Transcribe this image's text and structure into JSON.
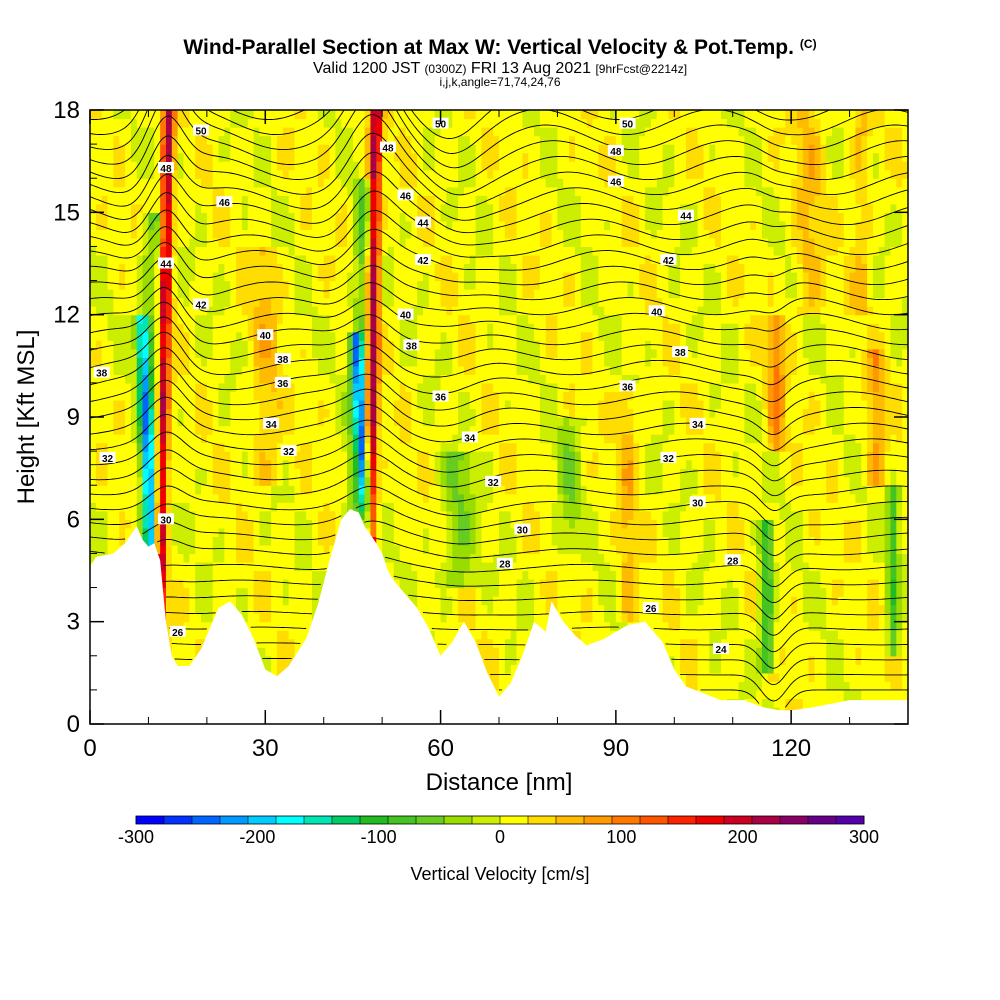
{
  "header": {
    "title": "Wind-Parallel Section at Max W: Vertical Velocity & Pot.Temp.",
    "copyright": "(C)",
    "valid_prefix": "Valid 1200 JST",
    "valid_utc": "(0300Z)",
    "valid_date": "FRI 13 Aug 2021",
    "forecast": "[9hrFcst@2214z]",
    "indices": "i,j,k,angle=71,74,24,76"
  },
  "chart_data": {
    "type": "heatmap",
    "xlabel": "Distance [nm]",
    "ylabel": "Height [Kft MSL]",
    "xlim": [
      0,
      140
    ],
    "ylim": [
      0,
      18
    ],
    "x_ticks": [
      "0",
      "30",
      "60",
      "90",
      "120"
    ],
    "x_tick_values": [
      0,
      30,
      60,
      90,
      120
    ],
    "y_ticks": [
      "0",
      "3",
      "6",
      "9",
      "12",
      "15",
      "18"
    ],
    "y_tick_values": [
      0,
      3,
      6,
      9,
      12,
      15,
      18
    ],
    "colorbar": {
      "title": "Vertical Velocity [cm/s]",
      "labels": [
        "-300",
        "-200",
        "-100",
        "0",
        "100",
        "200",
        "300"
      ],
      "label_values": [
        -300,
        -200,
        -100,
        0,
        100,
        200,
        300
      ],
      "range": [
        -300,
        300
      ],
      "colors": [
        "#0000ff",
        "#0033ff",
        "#0066ff",
        "#0099ff",
        "#00ccff",
        "#00ffff",
        "#00e5b3",
        "#00cc66",
        "#22bb22",
        "#44c422",
        "#66cc22",
        "#99dd00",
        "#ccee00",
        "#ffff00",
        "#ffdd00",
        "#ffbb00",
        "#ff9900",
        "#ff7700",
        "#ff5500",
        "#ff2200",
        "#ee0000",
        "#cc0022",
        "#aa0044",
        "#880066",
        "#660088",
        "#5500aa"
      ]
    },
    "theta_contour_labels": [
      {
        "label": "50",
        "x": 19,
        "z": 17.4
      },
      {
        "label": "48",
        "x": 13,
        "z": 16.3
      },
      {
        "label": "46",
        "x": 23,
        "z": 15.3
      },
      {
        "label": "44",
        "x": 13,
        "z": 13.5
      },
      {
        "label": "42",
        "x": 19,
        "z": 12.3
      },
      {
        "label": "40",
        "x": 30,
        "z": 11.4
      },
      {
        "label": "38",
        "x": 33,
        "z": 10.7
      },
      {
        "label": "36",
        "x": 33,
        "z": 10.0
      },
      {
        "label": "34",
        "x": 31,
        "z": 8.8
      },
      {
        "label": "32",
        "x": 34,
        "z": 8.0
      },
      {
        "label": "38",
        "x": 2,
        "z": 10.3
      },
      {
        "label": "32",
        "x": 3,
        "z": 7.8
      },
      {
        "label": "30",
        "x": 13,
        "z": 6.0
      },
      {
        "label": "26",
        "x": 15,
        "z": 2.7
      },
      {
        "label": "50",
        "x": 60,
        "z": 17.6
      },
      {
        "label": "48",
        "x": 51,
        "z": 16.9
      },
      {
        "label": "46",
        "x": 54,
        "z": 15.5
      },
      {
        "label": "44",
        "x": 57,
        "z": 14.7
      },
      {
        "label": "42",
        "x": 57,
        "z": 13.6
      },
      {
        "label": "40",
        "x": 54,
        "z": 12.0
      },
      {
        "label": "38",
        "x": 55,
        "z": 11.1
      },
      {
        "label": "36",
        "x": 60,
        "z": 9.6
      },
      {
        "label": "34",
        "x": 65,
        "z": 8.4
      },
      {
        "label": "32",
        "x": 69,
        "z": 7.1
      },
      {
        "label": "30",
        "x": 74,
        "z": 5.7
      },
      {
        "label": "28",
        "x": 71,
        "z": 4.7
      },
      {
        "label": "26",
        "x": 96,
        "z": 3.4
      },
      {
        "label": "50",
        "x": 92,
        "z": 17.6
      },
      {
        "label": "48",
        "x": 90,
        "z": 16.8
      },
      {
        "label": "46",
        "x": 90,
        "z": 15.9
      },
      {
        "label": "44",
        "x": 102,
        "z": 14.9
      },
      {
        "label": "42",
        "x": 99,
        "z": 13.6
      },
      {
        "label": "40",
        "x": 97,
        "z": 12.1
      },
      {
        "label": "38",
        "x": 101,
        "z": 10.9
      },
      {
        "label": "36",
        "x": 92,
        "z": 9.9
      },
      {
        "label": "34",
        "x": 104,
        "z": 8.8
      },
      {
        "label": "32",
        "x": 99,
        "z": 7.8
      },
      {
        "label": "30",
        "x": 104,
        "z": 6.5
      },
      {
        "label": "28",
        "x": 110,
        "z": 4.8
      },
      {
        "label": "24",
        "x": 108,
        "z": 2.2
      }
    ]
  }
}
